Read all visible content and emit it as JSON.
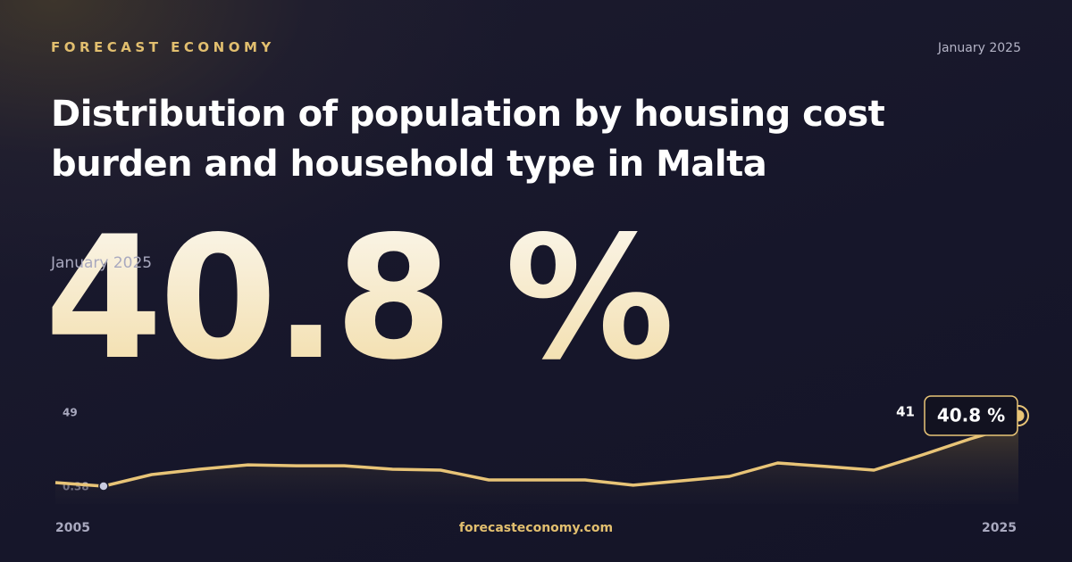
{
  "brand": "FORECAST ECONOMY",
  "date": "January 2025",
  "footer": "forecasteconomy.com",
  "chart_data": {
    "type": "line",
    "title": "Distribution of population by housing cost burden and household type in Malta",
    "headline": {
      "date": "January 2025",
      "value": 40.8,
      "label": "40.8 %"
    },
    "x": [
      2005,
      2006,
      2007,
      2008,
      2009,
      2010,
      2011,
      2012,
      2013,
      2014,
      2015,
      2016,
      2017,
      2018,
      2019,
      2020,
      2021,
      2022,
      2023,
      2024,
      2025
    ],
    "series": [
      {
        "name": "Malta",
        "color": "#e8c477",
        "values": [
          2.7,
          0.38,
          8,
          11.5,
          14.4,
          13.8,
          13.8,
          11.5,
          10.9,
          4.5,
          4.5,
          4.5,
          1,
          3.9,
          6.8,
          15.6,
          13.3,
          10.9,
          20.9,
          31.4,
          40.8
        ]
      }
    ],
    "last_label": "41",
    "xlim": [
      2005,
      2025
    ],
    "xticks": [
      2005,
      2025
    ],
    "ylim": [
      0.38,
      49
    ],
    "yticks": [
      0.38,
      49
    ]
  }
}
